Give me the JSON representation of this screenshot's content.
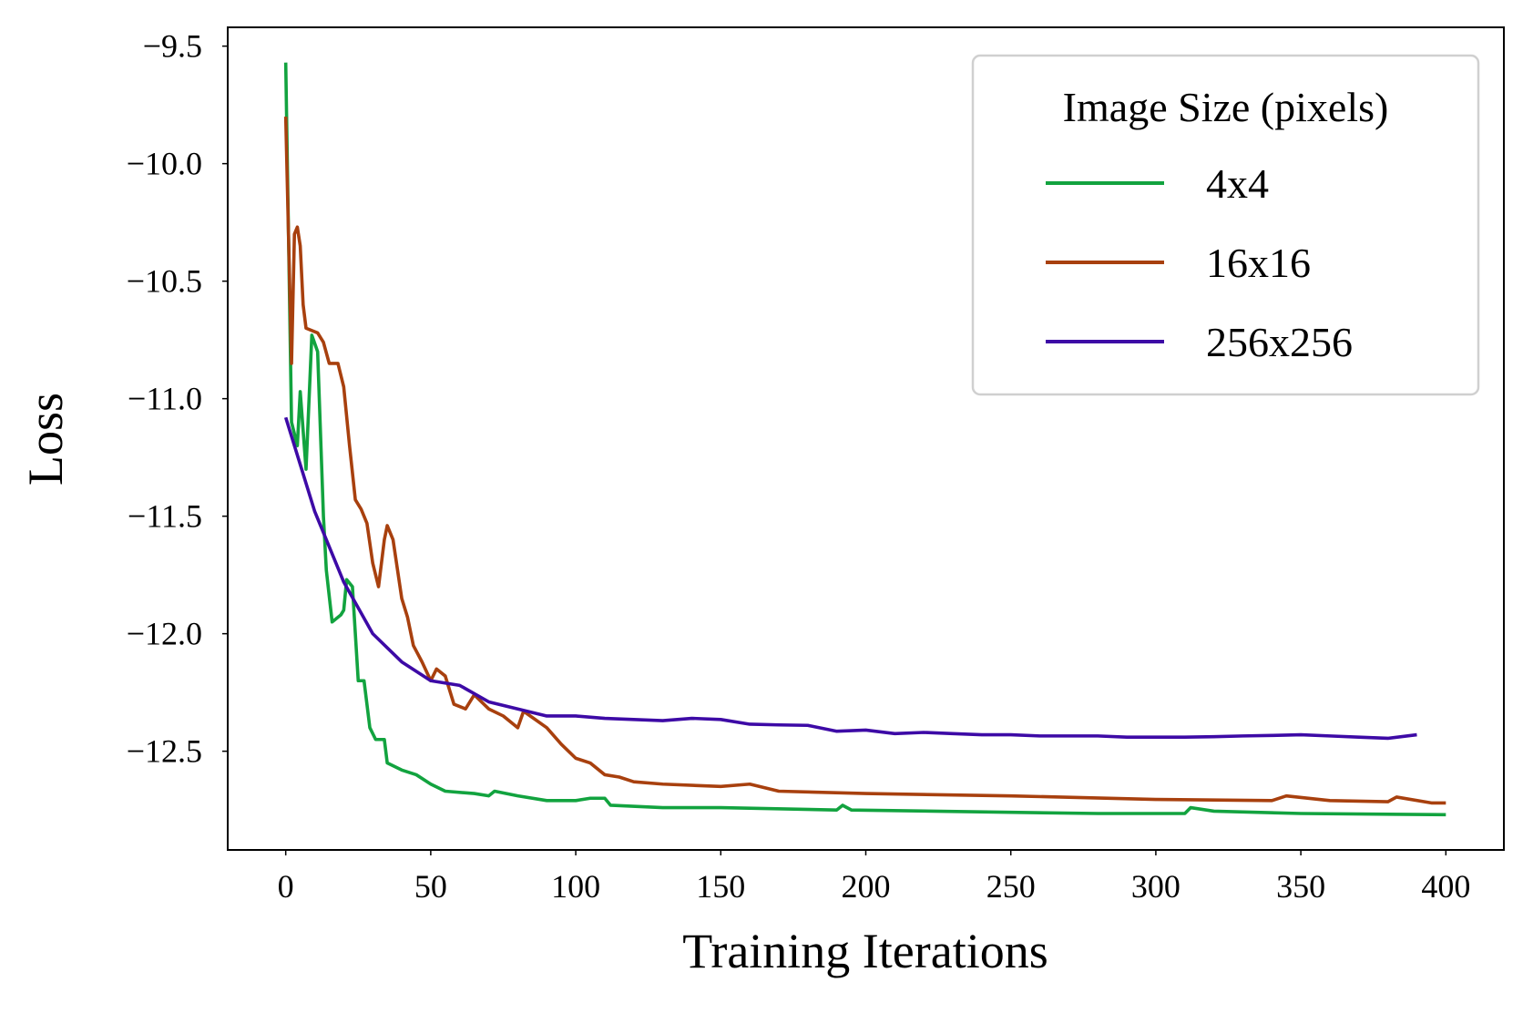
{
  "chart_data": {
    "type": "line",
    "xlabel": "Training Iterations",
    "ylabel": "Loss",
    "legend_title": "Image Size (pixels)",
    "legend_position": "upper right",
    "grid": false,
    "xlim": [
      -20,
      420
    ],
    "ylim": [
      -12.92,
      -9.42
    ],
    "xticks": [
      0,
      50,
      100,
      150,
      200,
      250,
      300,
      350,
      400
    ],
    "yticks": [
      {
        "value": -9.5,
        "label": "−9.5"
      },
      {
        "value": -10.0,
        "label": "−10.0"
      },
      {
        "value": -10.5,
        "label": "−10.5"
      },
      {
        "value": -11.0,
        "label": "−11.0"
      },
      {
        "value": -11.5,
        "label": "−11.5"
      },
      {
        "value": -12.0,
        "label": "−12.0"
      },
      {
        "value": -12.5,
        "label": "−12.5"
      }
    ],
    "series": [
      {
        "name": "4x4",
        "color": "#12a33f",
        "x": [
          0,
          2,
          4,
          5,
          7,
          9,
          11,
          13,
          14,
          16,
          19,
          20,
          21,
          23,
          25,
          27,
          29,
          31,
          34,
          35,
          40,
          45,
          50,
          55,
          65,
          70,
          72,
          80,
          90,
          100,
          105,
          110,
          112,
          130,
          150,
          190,
          192,
          195,
          250,
          280,
          310,
          312,
          320,
          350,
          400
        ],
        "values": [
          -9.57,
          -11.1,
          -11.2,
          -10.97,
          -11.3,
          -10.73,
          -10.8,
          -11.5,
          -11.73,
          -11.95,
          -11.92,
          -11.9,
          -11.77,
          -11.8,
          -12.2,
          -12.2,
          -12.4,
          -12.45,
          -12.45,
          -12.55,
          -12.58,
          -12.6,
          -12.64,
          -12.67,
          -12.68,
          -12.69,
          -12.67,
          -12.69,
          -12.71,
          -12.71,
          -12.7,
          -12.7,
          -12.73,
          -12.74,
          -12.74,
          -12.75,
          -12.73,
          -12.75,
          -12.76,
          -12.765,
          -12.765,
          -12.74,
          -12.755,
          -12.765,
          -12.77
        ]
      },
      {
        "name": "16x16",
        "color": "#a8400e",
        "x": [
          0,
          2,
          3,
          4,
          5,
          6,
          7,
          11,
          13,
          15,
          18,
          20,
          22,
          24,
          26,
          28,
          30,
          32,
          34,
          35,
          37,
          40,
          42,
          44,
          47,
          50,
          52,
          55,
          58,
          62,
          65,
          70,
          75,
          80,
          82,
          90,
          95,
          100,
          105,
          110,
          115,
          120,
          130,
          150,
          160,
          170,
          200,
          250,
          300,
          340,
          345,
          360,
          380,
          383,
          395,
          400
        ],
        "values": [
          -9.8,
          -10.85,
          -10.3,
          -10.27,
          -10.35,
          -10.6,
          -10.7,
          -10.72,
          -10.76,
          -10.85,
          -10.85,
          -10.95,
          -11.2,
          -11.43,
          -11.47,
          -11.53,
          -11.7,
          -11.8,
          -11.6,
          -11.54,
          -11.6,
          -11.85,
          -11.93,
          -12.05,
          -12.12,
          -12.2,
          -12.15,
          -12.18,
          -12.3,
          -12.32,
          -12.26,
          -12.32,
          -12.35,
          -12.4,
          -12.33,
          -12.4,
          -12.47,
          -12.53,
          -12.55,
          -12.6,
          -12.61,
          -12.63,
          -12.64,
          -12.65,
          -12.64,
          -12.67,
          -12.68,
          -12.69,
          -12.705,
          -12.71,
          -12.69,
          -12.71,
          -12.715,
          -12.695,
          -12.72,
          -12.72
        ]
      },
      {
        "name": "256x256",
        "color": "#3d0aa6",
        "x": [
          0,
          10,
          20,
          30,
          40,
          50,
          60,
          70,
          80,
          90,
          100,
          110,
          120,
          130,
          140,
          150,
          160,
          170,
          180,
          190,
          200,
          210,
          220,
          230,
          240,
          250,
          260,
          270,
          280,
          290,
          300,
          310,
          320,
          330,
          340,
          350,
          360,
          370,
          380,
          390
        ],
        "values": [
          -11.08,
          -11.48,
          -11.78,
          -12.0,
          -12.12,
          -12.2,
          -12.22,
          -12.29,
          -12.32,
          -12.35,
          -12.35,
          -12.36,
          -12.365,
          -12.37,
          -12.36,
          -12.365,
          -12.385,
          -12.388,
          -12.39,
          -12.415,
          -12.41,
          -12.425,
          -12.42,
          -12.425,
          -12.43,
          -12.43,
          -12.435,
          -12.435,
          -12.435,
          -12.44,
          -12.44,
          -12.44,
          -12.438,
          -12.435,
          -12.433,
          -12.43,
          -12.435,
          -12.44,
          -12.445,
          -12.43
        ]
      }
    ]
  }
}
